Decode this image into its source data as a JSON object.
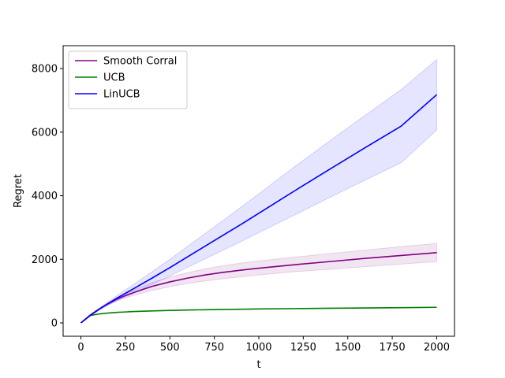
{
  "chart_data": {
    "type": "line",
    "title": "",
    "xlabel": "t",
    "ylabel": "Regret",
    "xlim": [
      -100,
      2100
    ],
    "ylim": [
      -420,
      8720
    ],
    "xticks": [
      0,
      250,
      500,
      750,
      1000,
      1250,
      1500,
      1750,
      2000
    ],
    "yticks": [
      0,
      2000,
      4000,
      6000,
      8000
    ],
    "grid": false,
    "legend_position": "top-left",
    "x": [
      0,
      50,
      100,
      150,
      200,
      250,
      300,
      400,
      500,
      600,
      700,
      800,
      900,
      1000,
      1200,
      1400,
      1600,
      1800,
      2000
    ],
    "series": [
      {
        "name": "Smooth Corral",
        "color": "#800080",
        "values": [
          0,
          240,
          430,
          590,
          740,
          860,
          960,
          1150,
          1290,
          1410,
          1510,
          1590,
          1660,
          1720,
          1830,
          1930,
          2030,
          2120,
          2210
        ],
        "lower": [
          0,
          230,
          410,
          560,
          690,
          790,
          870,
          1020,
          1140,
          1240,
          1320,
          1390,
          1450,
          1510,
          1610,
          1690,
          1770,
          1850,
          1930
        ],
        "upper": [
          0,
          250,
          450,
          620,
          790,
          920,
          1040,
          1270,
          1440,
          1580,
          1700,
          1800,
          1880,
          1950,
          2070,
          2180,
          2290,
          2400,
          2500
        ]
      },
      {
        "name": "UCB",
        "color": "#008000",
        "values": [
          0,
          230,
          280,
          310,
          330,
          345,
          358,
          378,
          393,
          405,
          415,
          423,
          431,
          438,
          450,
          461,
          471,
          480,
          490
        ],
        "lower": [
          0,
          226,
          276,
          306,
          326,
          341,
          354,
          374,
          389,
          401,
          411,
          419,
          427,
          434,
          446,
          457,
          467,
          476,
          486
        ],
        "upper": [
          0,
          234,
          284,
          314,
          334,
          349,
          362,
          382,
          397,
          409,
          419,
          427,
          435,
          442,
          454,
          465,
          475,
          484,
          494
        ]
      },
      {
        "name": "LinUCB",
        "color": "#0000ff",
        "values": [
          0,
          220,
          420,
          600,
          770,
          930,
          1090,
          1410,
          1740,
          2080,
          2420,
          2760,
          3100,
          3450,
          4150,
          4840,
          5520,
          6190,
          7180
        ],
        "lower": [
          0,
          210,
          390,
          550,
          690,
          820,
          950,
          1210,
          1480,
          1750,
          2020,
          2290,
          2560,
          2840,
          3390,
          3950,
          4500,
          5040,
          6070
        ],
        "upper": [
          0,
          230,
          450,
          650,
          850,
          1040,
          1230,
          1610,
          2000,
          2410,
          2820,
          3230,
          3640,
          4060,
          4910,
          5730,
          6540,
          7340,
          8280
        ]
      }
    ]
  }
}
